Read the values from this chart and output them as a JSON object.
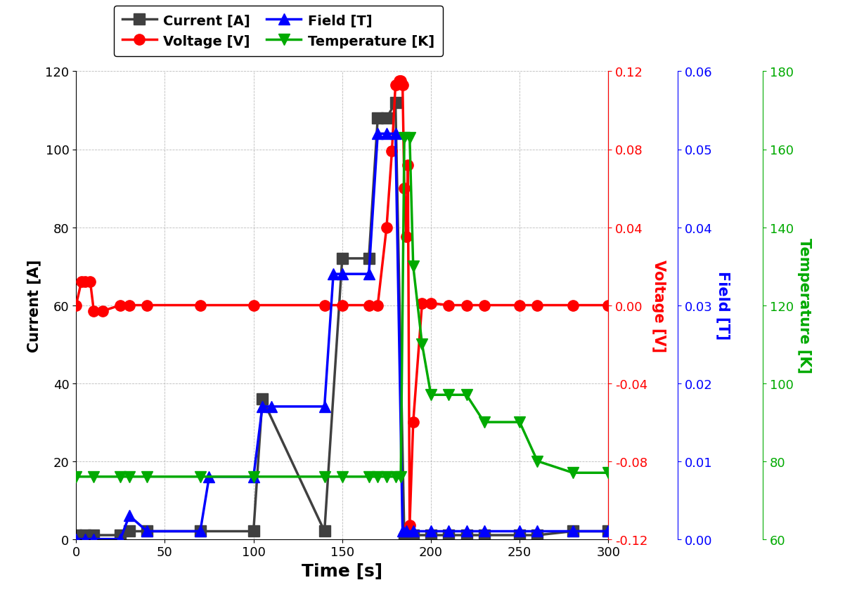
{
  "current_time": [
    0,
    5,
    10,
    25,
    30,
    40,
    70,
    100,
    105,
    140,
    150,
    165,
    170,
    175,
    180,
    185,
    190,
    200,
    210,
    220,
    230,
    250,
    260,
    280,
    300
  ],
  "current_val": [
    1,
    1,
    1,
    1,
    2,
    2,
    2,
    2,
    36,
    2,
    72,
    72,
    108,
    108,
    112,
    0,
    1,
    1,
    1,
    1,
    1,
    1,
    1,
    2,
    2
  ],
  "voltage_time": [
    0,
    3,
    5,
    8,
    10,
    15,
    25,
    30,
    40,
    70,
    100,
    140,
    150,
    165,
    170,
    175,
    178,
    180,
    182,
    183,
    184,
    185,
    186,
    187,
    188,
    190,
    195,
    200,
    210,
    220,
    230,
    250,
    260,
    280,
    300
  ],
  "voltage_val": [
    0.0,
    0.012,
    0.012,
    0.012,
    -0.003,
    -0.003,
    0.0,
    0.0,
    0.0,
    0.0,
    0.0,
    0.0,
    0.0,
    0.0,
    0.0,
    0.04,
    0.079,
    0.113,
    0.115,
    0.115,
    0.113,
    0.06,
    0.035,
    0.072,
    -0.113,
    -0.06,
    0.001,
    0.001,
    0.0,
    0.0,
    0.0,
    0.0,
    0.0,
    0.0,
    0.0
  ],
  "field_time": [
    0,
    5,
    10,
    25,
    30,
    40,
    70,
    75,
    100,
    105,
    110,
    140,
    145,
    150,
    165,
    170,
    175,
    180,
    184,
    186,
    190,
    200,
    210,
    220,
    230,
    250,
    260,
    280,
    300
  ],
  "field_val": [
    0.0,
    0.0,
    0.0,
    0.0,
    0.003,
    0.001,
    0.001,
    0.008,
    0.008,
    0.017,
    0.017,
    0.017,
    0.034,
    0.034,
    0.034,
    0.052,
    0.052,
    0.052,
    0.001,
    0.001,
    0.001,
    0.001,
    0.001,
    0.001,
    0.001,
    0.001,
    0.001,
    0.001,
    0.001
  ],
  "temp_time": [
    0,
    10,
    25,
    30,
    40,
    70,
    100,
    140,
    150,
    165,
    170,
    175,
    180,
    183,
    185,
    188,
    190,
    195,
    200,
    210,
    220,
    230,
    250,
    260,
    280,
    300
  ],
  "temp_val": [
    76,
    76,
    76,
    76,
    76,
    76,
    76,
    76,
    76,
    76,
    76,
    76,
    76,
    76,
    163,
    163,
    130,
    110,
    97,
    97,
    97,
    90,
    90,
    80,
    77,
    77
  ],
  "current_color": "#404040",
  "voltage_color": "#ff0000",
  "field_color": "#0000ff",
  "temp_color": "#00aa00",
  "ylabel_current": "Current [A]",
  "ylabel_voltage": "Voltage [V]",
  "ylabel_field": "Field [T]",
  "ylabel_temp": "Temperature [K]",
  "xlabel": "Time [s]",
  "ylim_current": [
    0,
    120
  ],
  "ylim_voltage": [
    -0.12,
    0.12
  ],
  "ylim_field": [
    0.0,
    0.06
  ],
  "ylim_temp": [
    60,
    180
  ],
  "xlim": [
    0,
    300
  ],
  "legend_labels": [
    "Current [A]",
    "Voltage [V]",
    "Field [T]",
    "Temperature [K]"
  ]
}
